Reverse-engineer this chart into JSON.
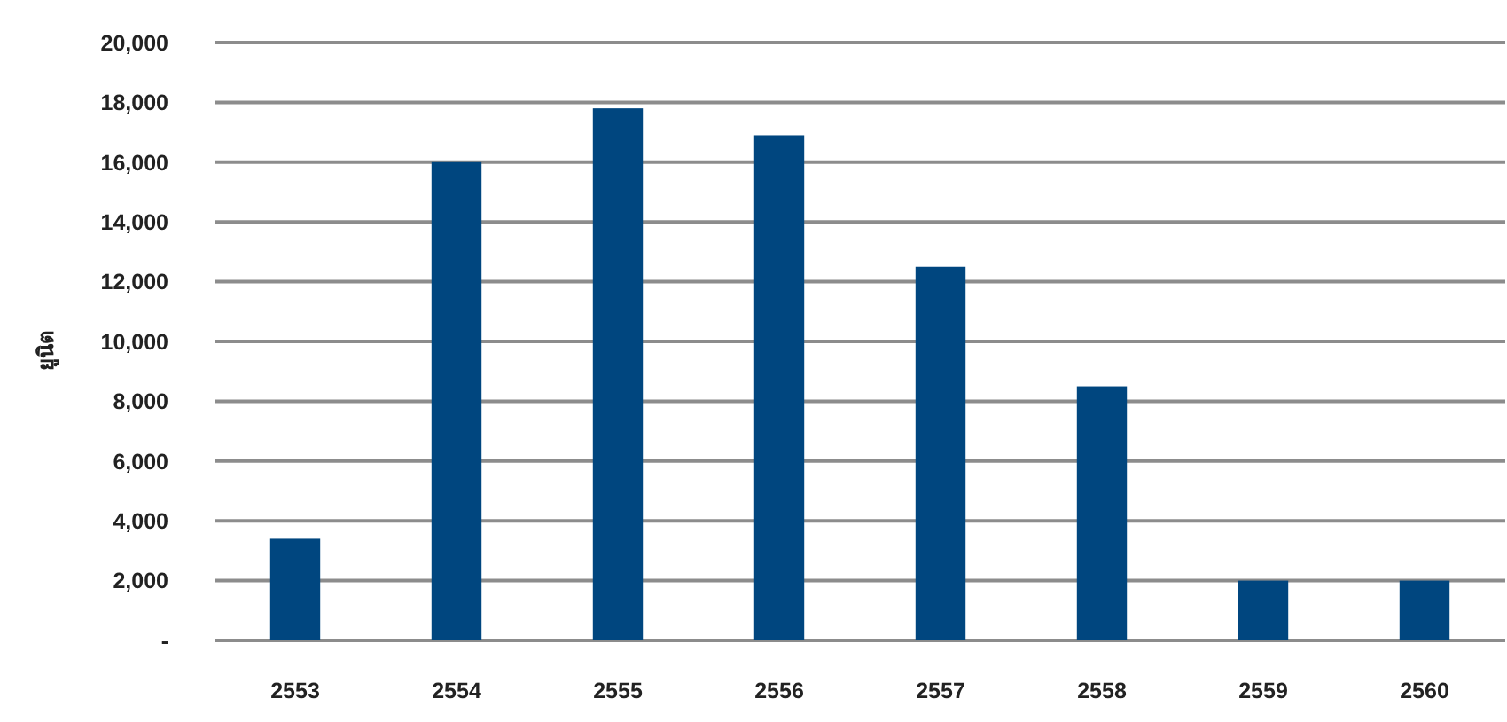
{
  "chart_data": {
    "type": "bar",
    "ylabel": "ยูนิต",
    "categories": [
      "2553",
      "2554",
      "2555",
      "2556",
      "2557",
      "2558",
      "2559",
      "2560"
    ],
    "values": [
      3400,
      16000,
      17800,
      16900,
      12500,
      8500,
      2000,
      2000
    ],
    "color": "#00467f",
    "ylim": [
      0,
      20000
    ],
    "yticks": [
      {
        "value": 0,
        "label": "-"
      },
      {
        "value": 2000,
        "label": "2,000"
      },
      {
        "value": 4000,
        "label": "4,000"
      },
      {
        "value": 6000,
        "label": "6,000"
      },
      {
        "value": 8000,
        "label": "8,000"
      },
      {
        "value": 10000,
        "label": "10,000"
      },
      {
        "value": 12000,
        "label": "12,000"
      },
      {
        "value": 14000,
        "label": "14,000"
      },
      {
        "value": 16000,
        "label": "16,000"
      },
      {
        "value": 18000,
        "label": "18,000"
      },
      {
        "value": 20000,
        "label": "20,000"
      }
    ],
    "grid": "y"
  }
}
